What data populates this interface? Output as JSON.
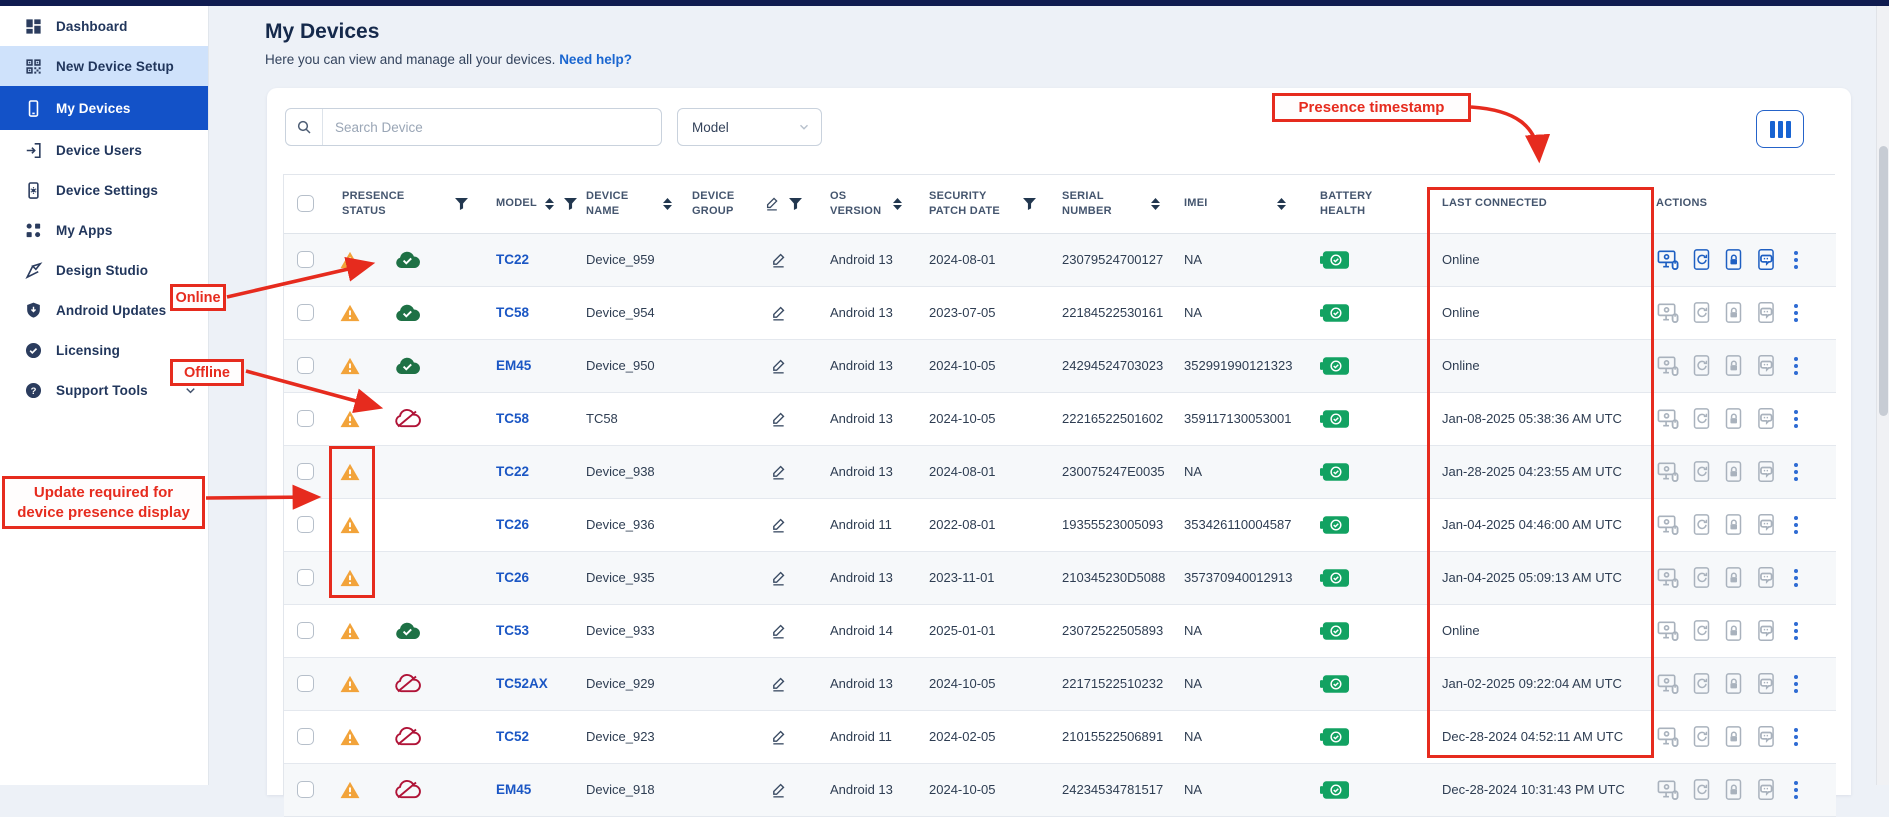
{
  "topbar": {
    "color": "#101c50"
  },
  "sidebar": {
    "items": [
      {
        "label": "Dashboard",
        "icon": "dashboard"
      },
      {
        "label": "New Device Setup",
        "icon": "qr-scan",
        "state": "highlight"
      },
      {
        "label": "My Devices",
        "icon": "phone",
        "state": "active"
      },
      {
        "label": "Device Users",
        "icon": "device-users"
      },
      {
        "label": "Device Settings",
        "icon": "device-settings"
      },
      {
        "label": "My Apps",
        "icon": "apps"
      },
      {
        "label": "Design Studio",
        "icon": "design"
      },
      {
        "label": "Android Updates",
        "icon": "shield"
      },
      {
        "label": "Licensing",
        "icon": "license"
      },
      {
        "label": "Support Tools",
        "icon": "help",
        "chevron": true
      }
    ]
  },
  "header": {
    "title": "My Devices",
    "subtitle": "Here you can view and manage all your devices.",
    "help_link": "Need help?"
  },
  "toolbar": {
    "search_placeholder": "Search Device",
    "model_filter_value": "Model"
  },
  "table": {
    "columns": [
      {
        "key": "select",
        "label": ""
      },
      {
        "key": "presence_status",
        "label": "PRESENCE STATUS",
        "filter": true
      },
      {
        "key": "model",
        "label": "MODEL",
        "sort": true,
        "filter": true
      },
      {
        "key": "device_name",
        "label": "DEVICE NAME",
        "sort": true
      },
      {
        "key": "device_group",
        "label": "DEVICE GROUP",
        "edit": true,
        "filter": true
      },
      {
        "key": "os_version",
        "label": "OS VERSION",
        "sort": true
      },
      {
        "key": "security_patch_date",
        "label": "SECURITY PATCH DATE",
        "filter": true
      },
      {
        "key": "serial_number",
        "label": "SERIAL NUMBER",
        "sort": true
      },
      {
        "key": "imei",
        "label": "IMEI",
        "sort": true
      },
      {
        "key": "battery_health",
        "label": "BATTERY HEALTH"
      },
      {
        "key": "last_connected",
        "label": "LAST CONNECTED"
      },
      {
        "key": "actions",
        "label": "ACTIONS"
      }
    ],
    "action_icons": [
      "remote-control",
      "reboot-device",
      "lock-device",
      "device-messages",
      "more-actions"
    ],
    "rows": [
      {
        "presence": "online",
        "model": "TC22",
        "device_name": "Device_959",
        "os_version": "Android 13",
        "security_patch_date": "2024-08-01",
        "serial_number": "23079524700127",
        "imei": "NA",
        "battery": "good",
        "last_connected": "Online",
        "actions_enabled": true
      },
      {
        "presence": "online",
        "model": "TC58",
        "device_name": "Device_954",
        "os_version": "Android 13",
        "security_patch_date": "2023-07-05",
        "serial_number": "22184522530161",
        "imei": "NA",
        "battery": "good",
        "last_connected": "Online",
        "actions_enabled": false
      },
      {
        "presence": "online",
        "model": "EM45",
        "device_name": "Device_950",
        "os_version": "Android 13",
        "security_patch_date": "2024-10-05",
        "serial_number": "24294524703023",
        "imei": "352991990121323",
        "battery": "good",
        "last_connected": "Online",
        "actions_enabled": false
      },
      {
        "presence": "offline",
        "model": "TC58",
        "device_name": "TC58",
        "os_version": "Android 13",
        "security_patch_date": "2024-10-05",
        "serial_number": "22216522501602",
        "imei": "359117130053001",
        "battery": "good",
        "last_connected": "Jan-08-2025 05:38:36 AM UTC",
        "actions_enabled": false
      },
      {
        "presence": "none",
        "model": "TC22",
        "device_name": "Device_938",
        "os_version": "Android 13",
        "security_patch_date": "2024-08-01",
        "serial_number": "230075247E0035",
        "imei": "NA",
        "battery": "good",
        "last_connected": "Jan-28-2025 04:23:55 AM UTC",
        "actions_enabled": false
      },
      {
        "presence": "none",
        "model": "TC26",
        "device_name": "Device_936",
        "os_version": "Android 11",
        "security_patch_date": "2022-08-01",
        "serial_number": "19355523005093",
        "imei": "353426110004587",
        "battery": "good",
        "last_connected": "Jan-04-2025 04:46:00 AM UTC",
        "actions_enabled": false
      },
      {
        "presence": "none",
        "model": "TC26",
        "device_name": "Device_935",
        "os_version": "Android 13",
        "security_patch_date": "2023-11-01",
        "serial_number": "210345230D5088",
        "imei": "357370940012913",
        "battery": "good",
        "last_connected": "Jan-04-2025 05:09:13 AM UTC",
        "actions_enabled": false
      },
      {
        "presence": "online",
        "model": "TC53",
        "device_name": "Device_933",
        "os_version": "Android 14",
        "security_patch_date": "2025-01-01",
        "serial_number": "23072522505893",
        "imei": "NA",
        "battery": "good",
        "last_connected": "Online",
        "actions_enabled": false
      },
      {
        "presence": "offline",
        "model": "TC52AX",
        "device_name": "Device_929",
        "os_version": "Android 13",
        "security_patch_date": "2024-10-05",
        "serial_number": "22171522510232",
        "imei": "NA",
        "battery": "good",
        "last_connected": "Jan-02-2025 09:22:04 AM UTC",
        "actions_enabled": false
      },
      {
        "presence": "offline",
        "model": "TC52",
        "device_name": "Device_923",
        "os_version": "Android 11",
        "security_patch_date": "2024-02-05",
        "serial_number": "21015522506891",
        "imei": "NA",
        "battery": "good",
        "last_connected": "Dec-28-2024 04:52:11 AM UTC",
        "actions_enabled": false
      },
      {
        "presence": "offline",
        "model": "EM45",
        "device_name": "Device_918",
        "os_version": "Android 13",
        "security_patch_date": "2024-10-05",
        "serial_number": "24234534781517",
        "imei": "NA",
        "battery": "good",
        "last_connected": "Dec-28-2024 10:31:43 PM UTC",
        "actions_enabled": false
      }
    ]
  },
  "annotations": {
    "presence_timestamp": "Presence timestamp",
    "online": "Online",
    "offline": "Offline",
    "update_required_line1": "Update required for",
    "update_required_line2": "device presence display"
  },
  "colors": {
    "accent_blue": "#1352c8",
    "link_blue": "#1a66d0",
    "annotation_red": "#e62b1e",
    "online_green": "#1e7145",
    "offline_red": "#b01337",
    "warning_orange": "#f2a33a",
    "battery_green": "#12a262"
  }
}
